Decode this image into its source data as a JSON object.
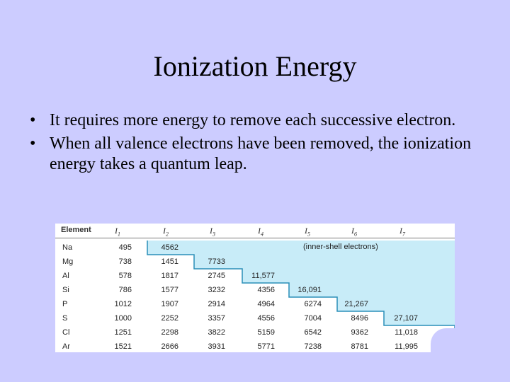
{
  "slide": {
    "title": "Ionization Energy",
    "bullets": [
      "It requires more energy to remove each successive electron.",
      "When all valence electrons have been removed, the ionization energy takes a quantum leap."
    ],
    "bullet_symbol": "•"
  },
  "table": {
    "header_first": "Element",
    "header_sym": [
      "I",
      "I",
      "I",
      "I",
      "I",
      "I",
      "I"
    ],
    "header_sub": [
      "1",
      "2",
      "3",
      "4",
      "5",
      "6",
      "7"
    ],
    "note": "(inner-shell electrons)",
    "shade_color": "#c8ecf8",
    "line_color": "#2a8fb8",
    "rows": [
      {
        "el": "Na",
        "v": [
          "495",
          "4562",
          "",
          "",
          "",
          "",
          ""
        ]
      },
      {
        "el": "Mg",
        "v": [
          "738",
          "1451",
          "7733",
          "",
          "",
          "",
          ""
        ]
      },
      {
        "el": "Al",
        "v": [
          "578",
          "1817",
          "2745",
          "11,577",
          "",
          "",
          ""
        ]
      },
      {
        "el": "Si",
        "v": [
          "786",
          "1577",
          "3232",
          "4356",
          "16,091",
          "",
          ""
        ]
      },
      {
        "el": "P",
        "v": [
          "1012",
          "1907",
          "2914",
          "4964",
          "6274",
          "21,267",
          ""
        ]
      },
      {
        "el": "S",
        "v": [
          "1000",
          "2252",
          "3357",
          "4556",
          "7004",
          "8496",
          "27,107"
        ]
      },
      {
        "el": "Cl",
        "v": [
          "1251",
          "2298",
          "3822",
          "5159",
          "6542",
          "9362",
          "11,018"
        ]
      },
      {
        "el": "Ar",
        "v": [
          "1521",
          "2666",
          "3931",
          "5771",
          "7238",
          "8781",
          "11,995"
        ]
      }
    ]
  }
}
